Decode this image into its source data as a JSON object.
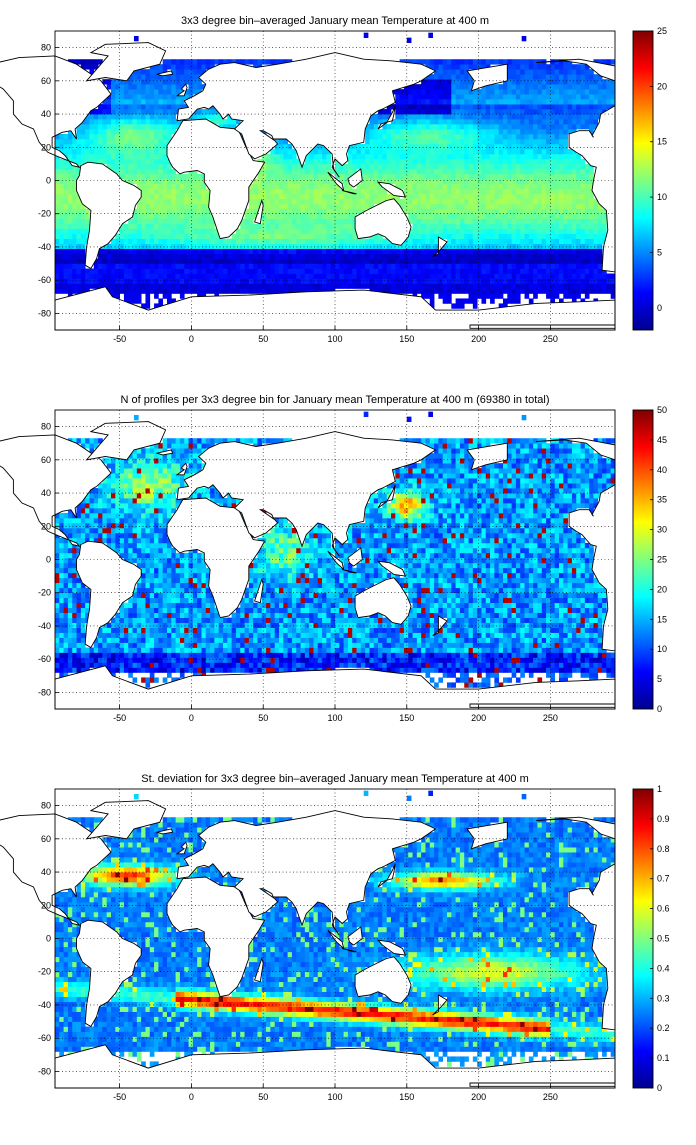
{
  "colormap": "jet",
  "chart_data": [
    {
      "type": "heatmap",
      "title": "3x3 degree bin–averaged January mean Temperature at 400 m",
      "xlabel": "",
      "ylabel": "",
      "xlim": [
        -95,
        295
      ],
      "ylim": [
        -90,
        90
      ],
      "x_ticks": [
        -50,
        0,
        50,
        100,
        150,
        200,
        250
      ],
      "y_ticks": [
        -80,
        -60,
        -40,
        -20,
        0,
        20,
        40,
        60,
        80
      ],
      "grid": true,
      "bin_size_deg": 3,
      "colorbar": {
        "min": -2,
        "max": 25,
        "ticks": [
          0,
          5,
          10,
          15,
          20,
          25
        ]
      },
      "field": "temperature"
    },
    {
      "type": "heatmap",
      "title": "N of profiles per 3x3 degree bin for January mean Temperature at 400 m (69380 in total)",
      "xlabel": "",
      "ylabel": "",
      "xlim": [
        -95,
        295
      ],
      "ylim": [
        -90,
        90
      ],
      "x_ticks": [
        -50,
        0,
        50,
        100,
        150,
        200,
        250
      ],
      "y_ticks": [
        -80,
        -60,
        -40,
        -20,
        0,
        20,
        40,
        60,
        80
      ],
      "grid": true,
      "bin_size_deg": 3,
      "total_profiles": 69380,
      "colorbar": {
        "min": 0,
        "max": 50,
        "ticks": [
          0,
          5,
          10,
          15,
          20,
          25,
          30,
          35,
          40,
          45,
          50
        ]
      },
      "field": "count"
    },
    {
      "type": "heatmap",
      "title": "St. deviation for 3x3 degree bin–averaged January mean Temperature at 400 m",
      "xlabel": "",
      "ylabel": "",
      "xlim": [
        -95,
        295
      ],
      "ylim": [
        -90,
        90
      ],
      "x_ticks": [
        -50,
        0,
        50,
        100,
        150,
        200,
        250
      ],
      "y_ticks": [
        -80,
        -60,
        -40,
        -20,
        0,
        20,
        40,
        60,
        80
      ],
      "grid": true,
      "bin_size_deg": 3,
      "colorbar": {
        "min": 0,
        "max": 1,
        "ticks": [
          0,
          0.1,
          0.2,
          0.3,
          0.4,
          0.5,
          0.6,
          0.7,
          0.8,
          0.9,
          1
        ]
      },
      "field": "stdev"
    }
  ]
}
